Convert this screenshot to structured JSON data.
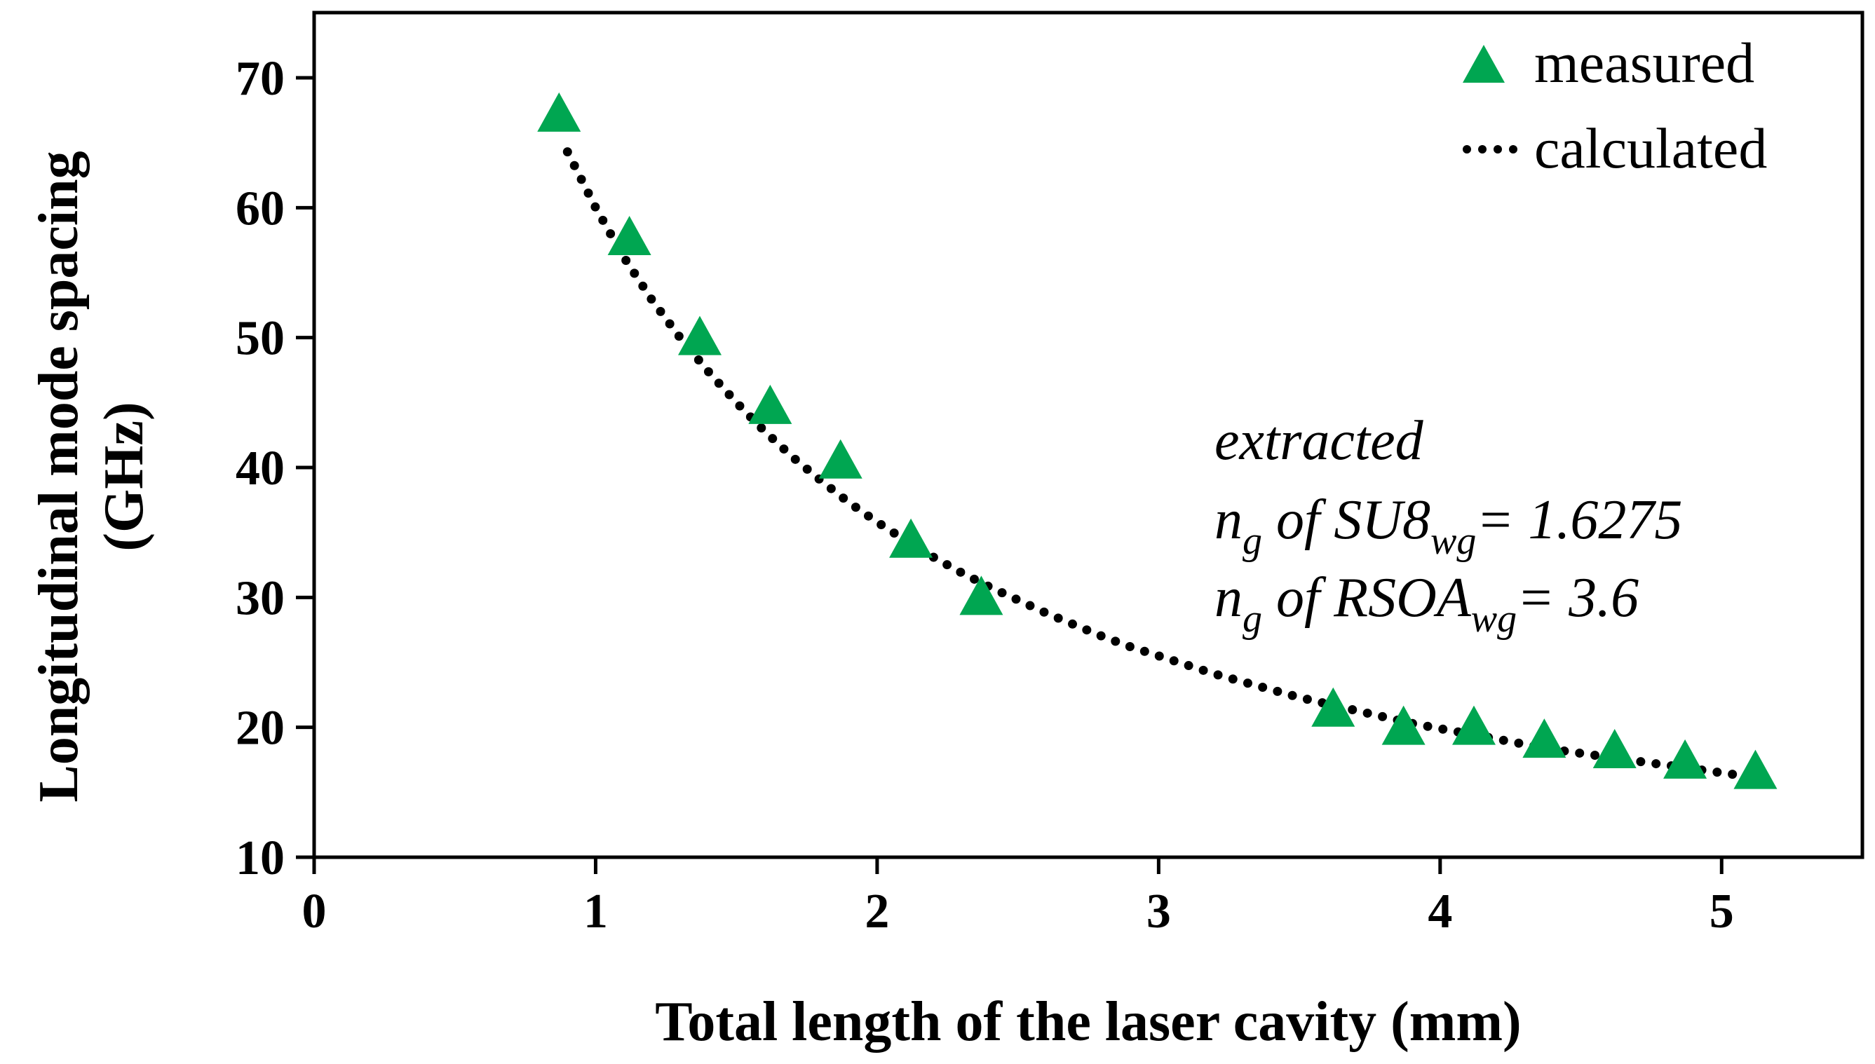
{
  "chart_data": {
    "type": "scatter",
    "title": "",
    "xlabel": "Total length of the laser cavity (mm)",
    "ylabel_line1": "Longitudinal mode spacing",
    "ylabel_line2": "(GHz)",
    "xlim": [
      0,
      5.5
    ],
    "ylim": [
      10,
      75
    ],
    "xticks": [
      0,
      1,
      2,
      3,
      4,
      5
    ],
    "yticks": [
      10,
      20,
      30,
      40,
      50,
      60,
      70
    ],
    "grid": false,
    "legend_position": "top-right",
    "series": [
      {
        "name": "measured",
        "marker": "triangle",
        "color": "#00a651",
        "x": [
          0.87,
          1.12,
          1.37,
          1.62,
          1.87,
          2.12,
          2.37,
          3.62,
          3.87,
          4.12,
          4.37,
          4.62,
          4.87,
          5.12
        ],
        "y": [
          67.0,
          57.5,
          49.8,
          44.5,
          40.3,
          34.2,
          29.8,
          21.2,
          19.8,
          19.8,
          18.8,
          18.0,
          17.2,
          16.4
        ]
      },
      {
        "name": "calculated",
        "style": "dotted",
        "color": "#000000",
        "x": [
          0.9,
          1.0,
          1.1,
          1.2,
          1.3,
          1.4,
          1.5,
          1.6,
          1.7,
          1.8,
          1.9,
          2.0,
          2.1,
          2.2,
          2.3,
          2.4,
          2.5,
          2.6,
          2.7,
          2.8,
          2.9,
          3.0,
          3.1,
          3.2,
          3.3,
          3.4,
          3.5,
          3.6,
          3.7,
          3.8,
          3.9,
          4.0,
          4.1,
          4.2,
          4.3,
          4.4,
          4.5,
          4.6,
          4.7,
          4.8,
          4.9,
          5.0,
          5.1,
          5.15
        ],
        "y": [
          64.3,
          60.0,
          56.2,
          52.9,
          50.0,
          47.4,
          45.0,
          42.8,
          40.8,
          39.0,
          37.3,
          35.8,
          34.4,
          33.1,
          31.9,
          30.8,
          29.8,
          28.8,
          27.9,
          27.0,
          26.2,
          25.5,
          24.8,
          24.1,
          23.5,
          22.9,
          22.3,
          21.8,
          21.3,
          20.8,
          20.3,
          19.9,
          19.5,
          19.1,
          18.7,
          18.3,
          18.0,
          17.7,
          17.4,
          17.1,
          16.8,
          16.5,
          16.2,
          16.1
        ]
      }
    ],
    "annotation": {
      "line1": "extracted",
      "ng_symbol": "n",
      "ng_sub": "g",
      "line2_mid": " of SU8",
      "line2_sub": "wg",
      "line2_end": "= 1.6275",
      "line3_mid": " of RSOA",
      "line3_sub": "wg",
      "line3_end": "= 3.6"
    }
  }
}
